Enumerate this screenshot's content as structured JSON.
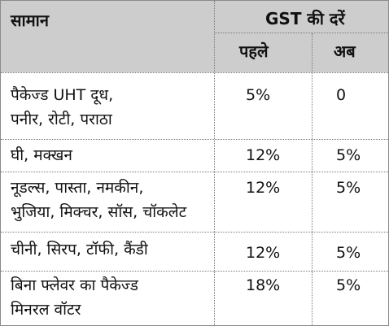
{
  "header": {
    "item": "सामान",
    "gst_title": "GST की दरें",
    "before": "पहले",
    "now": "अब"
  },
  "rows": [
    {
      "item_line1": "पैकेज्ड UHT दूध,",
      "item_line2": "पनीर, रोटी, पराठा",
      "before": "5%",
      "now": "0"
    },
    {
      "item_line1": "घी, मक्खन",
      "item_line2": "",
      "before": "12%",
      "now": "5%"
    },
    {
      "item_line1": "नूडल्स, पास्ता, नमकीन,",
      "item_line2": "भुजिया, मिक्चर, सॉस, चॉकलेट",
      "before": "12%",
      "now": "5%"
    },
    {
      "item_line1": "चीनी, सिरप, टॉफी, कैंडी",
      "item_line2": "",
      "before": "12%",
      "now": "5%"
    },
    {
      "item_line1": "बिना फ्लेवर का पैकेज्ड",
      "item_line2": "मिनरल वॉटर",
      "before": "18%",
      "now": "5%"
    }
  ]
}
